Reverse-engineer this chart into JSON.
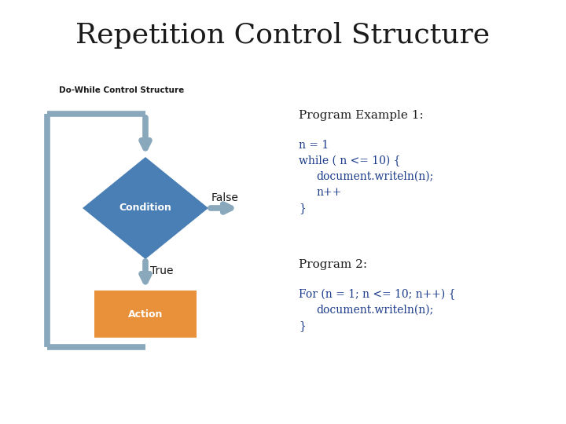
{
  "title": "Repetition Control Structure",
  "title_fontsize": 26,
  "title_font": "serif",
  "subtitle": "Do-While Control Structure",
  "subtitle_fontsize": 7.5,
  "bg_color": "#ffffff",
  "diagram_color_condition": "#4a7fb5",
  "diagram_color_action": "#e8913a",
  "diagram_color_frame": "#8aa8bc",
  "condition_text": "Condition",
  "action_text": "Action",
  "false_label": "False",
  "true_label": "True",
  "code_color": "#1a3a8a",
  "black_color": "#1a1a1a",
  "program1_label": "Program Example 1:",
  "program2_label": "Program 2:",
  "code_lines_1": [
    "n = 1",
    "while ( n <= 10) {",
    "    document.writeln(n);",
    "    n++",
    "}"
  ],
  "code_lines_2": [
    "For (n = 1; n <= 10; n++) {",
    "    document.writeln(n);",
    "}"
  ],
  "code_fontsize": 10,
  "label_fontsize": 10,
  "header_fontsize": 10
}
